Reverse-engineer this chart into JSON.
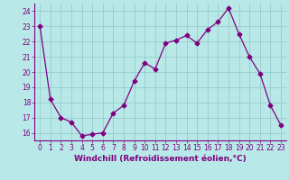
{
  "x": [
    0,
    1,
    2,
    3,
    4,
    5,
    6,
    7,
    8,
    9,
    10,
    11,
    12,
    13,
    14,
    15,
    16,
    17,
    18,
    19,
    20,
    21,
    22,
    23
  ],
  "y": [
    23.0,
    18.2,
    17.0,
    16.7,
    15.8,
    15.9,
    16.0,
    17.3,
    17.8,
    19.4,
    20.6,
    20.2,
    21.9,
    22.1,
    22.4,
    21.9,
    22.8,
    23.3,
    24.2,
    22.5,
    21.0,
    19.9,
    17.8,
    16.5
  ],
  "line_color": "#800080",
  "marker": "D",
  "marker_size": 2.5,
  "bg_color": "#b8e8e8",
  "grid_color": "#90c8c8",
  "xlabel": "Windchill (Refroidissement éolien,°C)",
  "xlabel_fontsize": 6.5,
  "ylim": [
    15.5,
    24.5
  ],
  "xlim": [
    -0.5,
    23.5
  ],
  "yticks": [
    16,
    17,
    18,
    19,
    20,
    21,
    22,
    23,
    24
  ],
  "xticks": [
    0,
    1,
    2,
    3,
    4,
    5,
    6,
    7,
    8,
    9,
    10,
    11,
    12,
    13,
    14,
    15,
    16,
    17,
    18,
    19,
    20,
    21,
    22,
    23
  ],
  "tick_fontsize": 5.5,
  "tick_color": "#800080",
  "label_color": "#800080",
  "spine_color": "#800080"
}
